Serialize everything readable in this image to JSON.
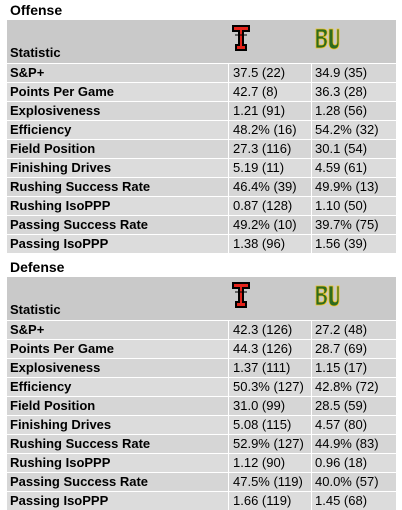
{
  "offense": {
    "title": "Offense",
    "header": "Statistic",
    "team1_logo": "texas-tech-logo",
    "team2_logo": "baylor-logo",
    "colors": {
      "team1": "#e2231a",
      "team2": "#2e6b1f",
      "team2_accent": "#f2c21b"
    },
    "rows": [
      {
        "stat": "S&P+",
        "t1": "37.5 (22)",
        "t2": "34.9 (35)"
      },
      {
        "stat": "Points Per Game",
        "t1": "42.7 (8)",
        "t2": "36.3 (28)"
      },
      {
        "stat": "Explosiveness",
        "t1": "1.21 (91)",
        "t2": "1.28 (56)"
      },
      {
        "stat": "Efficiency",
        "t1": "48.2% (16)",
        "t2": "54.2% (32)"
      },
      {
        "stat": "Field Position",
        "t1": "27.3 (116)",
        "t2": "30.1 (54)"
      },
      {
        "stat": "Finishing Drives",
        "t1": "5.19 (11)",
        "t2": "4.59 (61)"
      },
      {
        "stat": "Rushing Success Rate",
        "t1": "46.4% (39)",
        "t2": "49.9% (13)"
      },
      {
        "stat": "Rushing IsoPPP",
        "t1": "0.87 (128)",
        "t2": "1.10 (50)"
      },
      {
        "stat": "Passing Success Rate",
        "t1": "49.2% (10)",
        "t2": "39.7% (75)"
      },
      {
        "stat": "Passing IsoPPP",
        "t1": "1.38 (96)",
        "t2": "1.56 (39)"
      }
    ]
  },
  "defense": {
    "title": "Defense",
    "header": "Statistic",
    "team1_logo": "texas-tech-logo",
    "team2_logo": "baylor-logo",
    "rows": [
      {
        "stat": "S&P+",
        "t1": "42.3 (126)",
        "t2": "27.2 (48)"
      },
      {
        "stat": "Points Per Game",
        "t1": "44.3 (126)",
        "t2": "28.7 (69)"
      },
      {
        "stat": "Explosiveness",
        "t1": "1.37 (111)",
        "t2": "1.15 (17)"
      },
      {
        "stat": "Efficiency",
        "t1": "50.3% (127)",
        "t2": "42.8% (72)"
      },
      {
        "stat": "Field Position",
        "t1": "31.0 (99)",
        "t2": "28.5 (59)"
      },
      {
        "stat": "Finishing Drives",
        "t1": "5.08 (115)",
        "t2": "4.57 (80)"
      },
      {
        "stat": "Rushing Success Rate",
        "t1": "52.9% (127)",
        "t2": "44.9% (83)"
      },
      {
        "stat": "Rushing IsoPPP",
        "t1": "1.12 (90)",
        "t2": "0.96 (18)"
      },
      {
        "stat": "Passing Success Rate",
        "t1": "47.5% (119)",
        "t2": "40.0% (57)"
      },
      {
        "stat": "Passing IsoPPP",
        "t1": "1.66 (119)",
        "t2": "1.45 (68)"
      }
    ]
  }
}
